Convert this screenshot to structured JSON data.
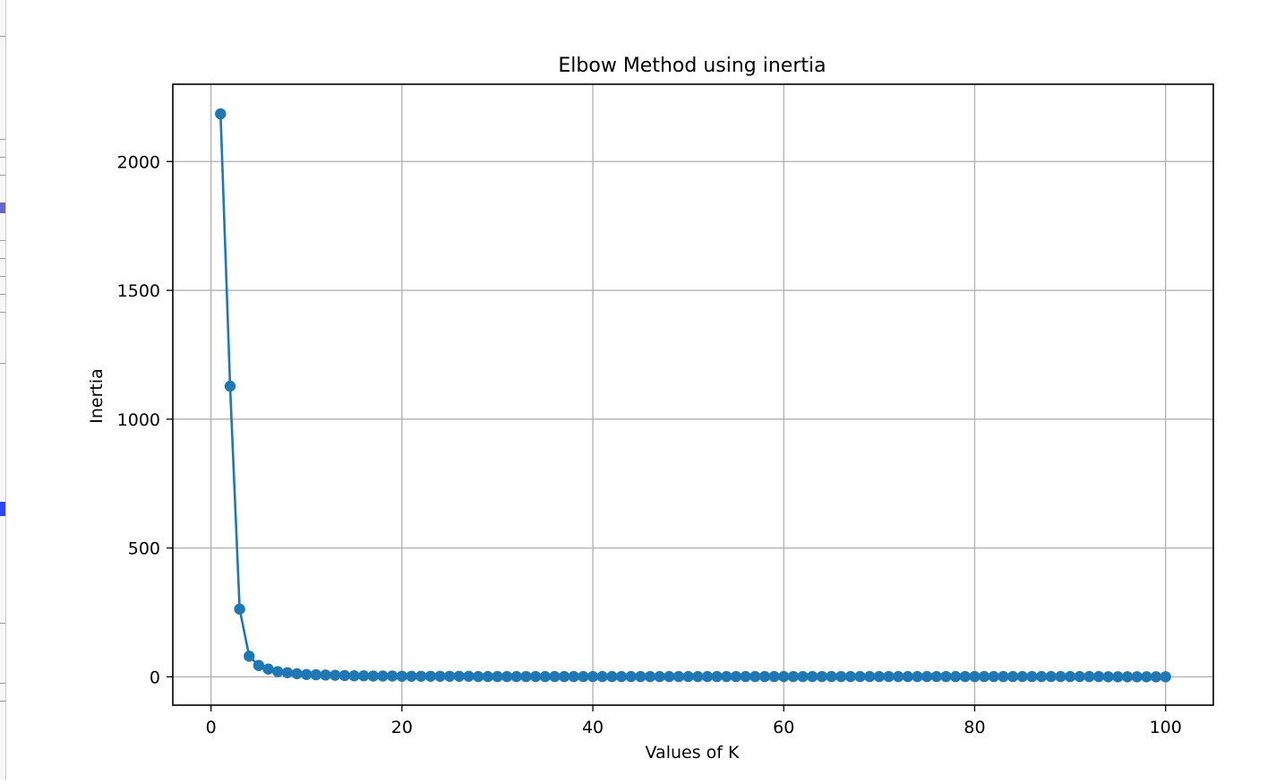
{
  "chart_data": {
    "type": "line",
    "title": "Elbow Method using inertia",
    "xlabel": "Values of K",
    "ylabel": "Inertia",
    "xlim": [
      -4,
      105
    ],
    "ylim": [
      -110,
      2300
    ],
    "x_ticks": [
      0,
      20,
      40,
      60,
      80,
      100
    ],
    "y_ticks": [
      0,
      500,
      1000,
      1500,
      2000
    ],
    "grid": true,
    "marker": "circle",
    "colors": {
      "line": "#1f77b4",
      "grid": "#b0b0b0",
      "axes": "#000000"
    },
    "series": [
      {
        "x": [
          1,
          2,
          3,
          4,
          5,
          6,
          7,
          8,
          9,
          10,
          11,
          12,
          13,
          14,
          15,
          16,
          17,
          18,
          19,
          20,
          21,
          22,
          23,
          24,
          25,
          26,
          27,
          28,
          29,
          30,
          31,
          32,
          33,
          34,
          35,
          36,
          37,
          38,
          39,
          40,
          41,
          42,
          43,
          44,
          45,
          46,
          47,
          48,
          49,
          50,
          51,
          52,
          53,
          54,
          55,
          56,
          57,
          58,
          59,
          60,
          61,
          62,
          63,
          64,
          65,
          66,
          67,
          68,
          69,
          70,
          71,
          72,
          73,
          74,
          75,
          76,
          77,
          78,
          79,
          80,
          81,
          82,
          83,
          84,
          85,
          86,
          87,
          88,
          89,
          90,
          91,
          92,
          93,
          94,
          95,
          96,
          97,
          98,
          99,
          100
        ],
        "values": [
          2185,
          1128,
          263,
          80,
          44,
          30,
          20,
          16,
          12,
          9,
          8,
          7,
          6,
          5,
          4,
          4,
          3,
          3,
          3,
          2,
          2,
          2,
          2,
          2,
          2,
          2,
          2,
          1,
          1,
          1,
          1,
          1,
          1,
          1,
          1,
          1,
          1,
          1,
          1,
          1,
          1,
          1,
          1,
          1,
          1,
          1,
          1,
          1,
          1,
          1,
          1,
          1,
          1,
          1,
          1,
          1,
          1,
          1,
          1,
          1,
          1,
          1,
          1,
          1,
          1,
          1,
          1,
          1,
          1,
          1,
          1,
          1,
          1,
          1,
          1,
          1,
          1,
          1,
          1,
          1,
          1,
          1,
          1,
          1,
          1,
          1,
          1,
          1,
          1,
          1,
          1,
          1,
          1,
          0,
          0,
          0,
          0,
          0,
          0,
          0
        ]
      }
    ]
  }
}
